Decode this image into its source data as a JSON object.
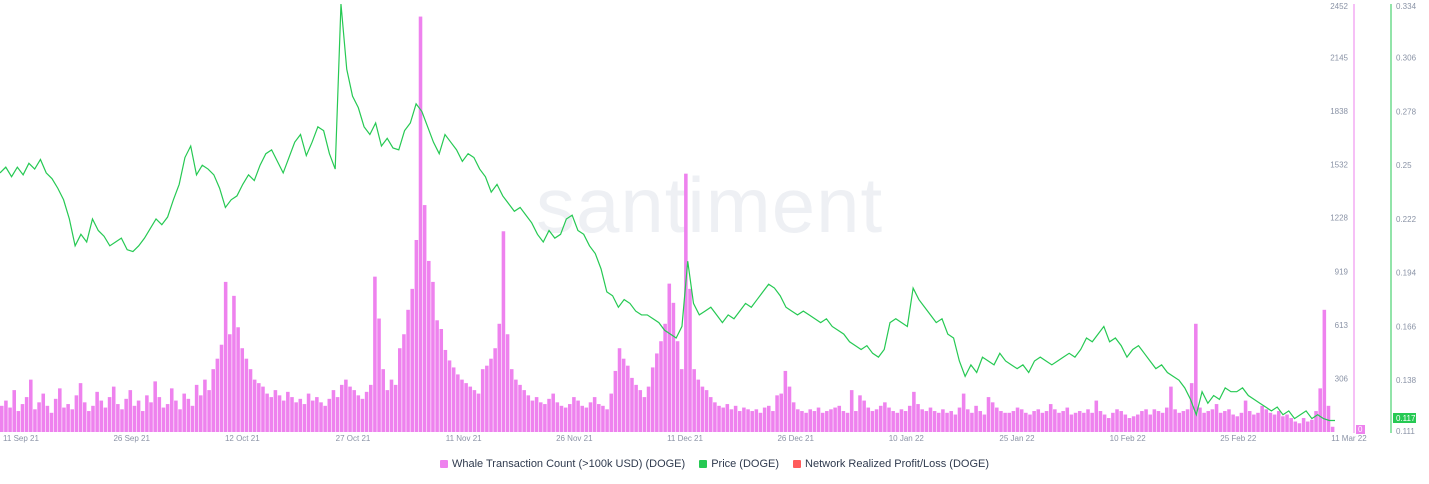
{
  "watermark": "santiment",
  "legend": [
    {
      "label": "Whale Transaction Count (>100k USD) (DOGE)",
      "color": "#ee82ee"
    },
    {
      "label": "Price (DOGE)",
      "color": "#26c953"
    },
    {
      "label": "Network Realized Profit/Loss (DOGE)",
      "color": "#ff5b5b"
    }
  ],
  "colors": {
    "whale": "#ee82ee",
    "price": "#26c953",
    "profit_loss": "#ff5b5b",
    "axis_text": "#8a93a6"
  },
  "chart_data": {
    "type": "line",
    "x_ticks": [
      "11 Sep 21",
      "26 Sep 21",
      "12 Oct 21",
      "27 Oct 21",
      "11 Nov 21",
      "26 Nov 21",
      "11 Dec 21",
      "26 Dec 21",
      "10 Jan 22",
      "25 Jan 22",
      "10 Feb 22",
      "25 Feb 22",
      "11 Mar 22"
    ],
    "y_left_ticks": [
      "2452",
      "2145",
      "1838",
      "1532",
      "1228",
      "919",
      "613",
      "306",
      "0"
    ],
    "y_right_ticks": [
      "0.334",
      "0.306",
      "0.278",
      "0.25",
      "0.222",
      "0.194",
      "0.166",
      "0.138",
      "0.111"
    ],
    "y_left_range": [
      0,
      2452
    ],
    "y_right_range": [
      0.111,
      0.334
    ],
    "badges": {
      "left_current": "0",
      "right_current": "0.117"
    },
    "series": [
      {
        "name": "Whale Transaction Count (>100k USD) (DOGE)",
        "axis": "left",
        "type": "bar",
        "values": [
          150,
          180,
          140,
          240,
          120,
          160,
          200,
          300,
          130,
          170,
          220,
          150,
          110,
          190,
          250,
          140,
          160,
          130,
          210,
          280,
          170,
          120,
          150,
          230,
          180,
          140,
          200,
          260,
          160,
          130,
          190,
          240,
          150,
          180,
          120,
          210,
          170,
          290,
          200,
          140,
          160,
          250,
          180,
          130,
          220,
          190,
          150,
          270,
          210,
          300,
          240,
          360,
          420,
          500,
          860,
          560,
          780,
          600,
          480,
          420,
          360,
          300,
          280,
          260,
          220,
          200,
          240,
          210,
          180,
          230,
          200,
          170,
          190,
          160,
          220,
          180,
          200,
          170,
          150,
          190,
          240,
          200,
          270,
          300,
          260,
          240,
          210,
          190,
          230,
          270,
          890,
          650,
          360,
          240,
          300,
          270,
          480,
          560,
          700,
          820,
          1100,
          2380,
          1300,
          980,
          860,
          640,
          590,
          470,
          410,
          370,
          330,
          300,
          280,
          260,
          240,
          220,
          360,
          380,
          420,
          480,
          620,
          1150,
          560,
          360,
          300,
          270,
          240,
          210,
          180,
          200,
          170,
          160,
          190,
          220,
          170,
          150,
          140,
          160,
          200,
          180,
          150,
          140,
          170,
          200,
          160,
          150,
          130,
          220,
          350,
          480,
          420,
          380,
          310,
          270,
          240,
          200,
          260,
          370,
          450,
          520,
          620,
          850,
          740,
          520,
          360,
          1480,
          820,
          360,
          300,
          260,
          240,
          200,
          170,
          150,
          140,
          160,
          130,
          150,
          120,
          140,
          130,
          120,
          130,
          110,
          140,
          150,
          120,
          210,
          220,
          350,
          260,
          170,
          130,
          120,
          110,
          130,
          120,
          140,
          110,
          120,
          130,
          140,
          150,
          120,
          110,
          240,
          120,
          210,
          180,
          140,
          120,
          130,
          150,
          170,
          140,
          120,
          110,
          130,
          120,
          150,
          230,
          160,
          130,
          120,
          140,
          120,
          110,
          130,
          110,
          120,
          100,
          140,
          220,
          130,
          110,
          150,
          120,
          100,
          200,
          170,
          140,
          120,
          110,
          110,
          120,
          140,
          130,
          110,
          100,
          120,
          130,
          110,
          120,
          160,
          130,
          110,
          120,
          140,
          100,
          110,
          120,
          110,
          130,
          110,
          180,
          120,
          100,
          80,
          110,
          130,
          120,
          100,
          80,
          90,
          100,
          120,
          130,
          100,
          130,
          120,
          110,
          140,
          260,
          130,
          110,
          120,
          130,
          280,
          620,
          140,
          110,
          120,
          130,
          160,
          110,
          120,
          130,
          100,
          90,
          110,
          180,
          120,
          100,
          110,
          150,
          130,
          110,
          100,
          120,
          90,
          100,
          80,
          60,
          50,
          80,
          60,
          70,
          120,
          250,
          700,
          150,
          30
        ],
        "peak_labels": [
          "27 Oct 21",
          "11 Nov 21",
          "26 Nov 21",
          "11 Dec 21",
          "10 Jan 22",
          "25 Feb 22"
        ]
      },
      {
        "name": "Price (DOGE)",
        "axis": "right",
        "type": "line",
        "values": [
          0.246,
          0.249,
          0.244,
          0.249,
          0.245,
          0.251,
          0.248,
          0.253,
          0.246,
          0.243,
          0.238,
          0.232,
          0.222,
          0.208,
          0.214,
          0.21,
          0.222,
          0.216,
          0.213,
          0.208,
          0.21,
          0.212,
          0.206,
          0.205,
          0.208,
          0.212,
          0.217,
          0.222,
          0.219,
          0.223,
          0.232,
          0.24,
          0.254,
          0.26,
          0.245,
          0.25,
          0.248,
          0.245,
          0.238,
          0.228,
          0.232,
          0.234,
          0.24,
          0.245,
          0.242,
          0.25,
          0.256,
          0.258,
          0.252,
          0.246,
          0.254,
          0.262,
          0.266,
          0.255,
          0.262,
          0.27,
          0.268,
          0.256,
          0.248,
          0.334,
          0.3,
          0.286,
          0.28,
          0.27,
          0.266,
          0.272,
          0.26,
          0.264,
          0.259,
          0.258,
          0.268,
          0.272,
          0.282,
          0.278,
          0.27,
          0.262,
          0.256,
          0.266,
          0.262,
          0.258,
          0.252,
          0.256,
          0.254,
          0.248,
          0.244,
          0.236,
          0.24,
          0.234,
          0.23,
          0.226,
          0.228,
          0.224,
          0.22,
          0.214,
          0.21,
          0.216,
          0.212,
          0.214,
          0.222,
          0.224,
          0.216,
          0.214,
          0.208,
          0.204,
          0.196,
          0.184,
          0.182,
          0.176,
          0.18,
          0.178,
          0.174,
          0.172,
          0.172,
          0.17,
          0.168,
          0.164,
          0.162,
          0.16,
          0.166,
          0.2,
          0.178,
          0.172,
          0.174,
          0.176,
          0.172,
          0.168,
          0.172,
          0.17,
          0.174,
          0.178,
          0.176,
          0.18,
          0.184,
          0.188,
          0.186,
          0.182,
          0.176,
          0.174,
          0.172,
          0.174,
          0.172,
          0.17,
          0.168,
          0.17,
          0.166,
          0.164,
          0.162,
          0.158,
          0.156,
          0.154,
          0.156,
          0.152,
          0.15,
          0.154,
          0.168,
          0.17,
          0.168,
          0.166,
          0.186,
          0.18,
          0.176,
          0.172,
          0.168,
          0.17,
          0.162,
          0.16,
          0.148,
          0.14,
          0.146,
          0.142,
          0.15,
          0.148,
          0.146,
          0.152,
          0.148,
          0.146,
          0.144,
          0.146,
          0.142,
          0.148,
          0.15,
          0.148,
          0.146,
          0.148,
          0.15,
          0.152,
          0.15,
          0.154,
          0.16,
          0.158,
          0.162,
          0.166,
          0.158,
          0.16,
          0.156,
          0.15,
          0.154,
          0.156,
          0.152,
          0.148,
          0.144,
          0.146,
          0.142,
          0.14,
          0.138,
          0.134,
          0.128,
          0.12,
          0.132,
          0.126,
          0.13,
          0.128,
          0.134,
          0.132,
          0.132,
          0.134,
          0.13,
          0.128,
          0.126,
          0.124,
          0.122,
          0.124,
          0.12,
          0.122,
          0.118,
          0.12,
          0.122,
          0.118,
          0.12,
          0.118,
          0.117,
          0.117
        ]
      },
      {
        "name": "Network Realized Profit/Loss (DOGE)",
        "axis": "left",
        "type": "bar",
        "values": []
      }
    ]
  }
}
